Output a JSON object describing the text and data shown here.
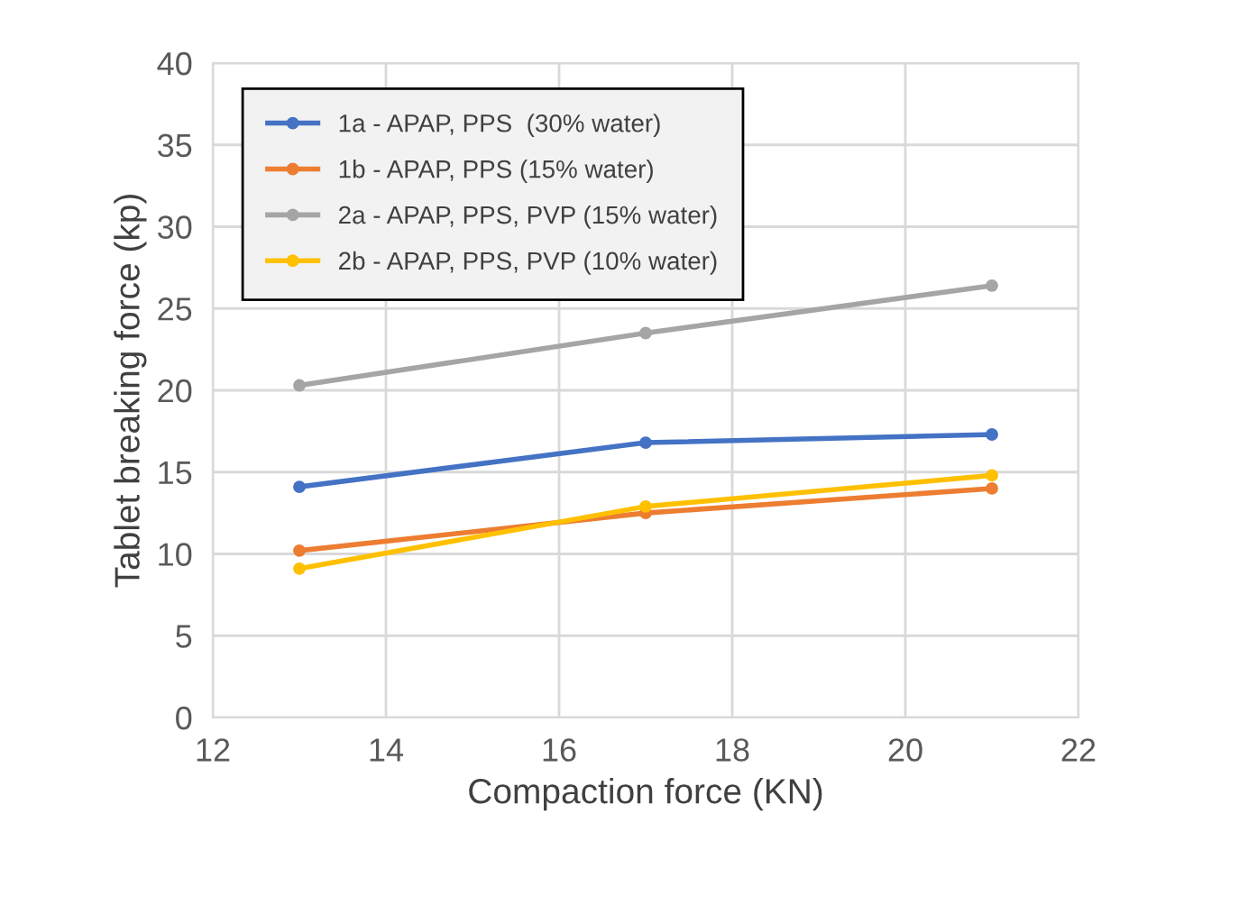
{
  "chart_data": {
    "type": "line",
    "xlabel": "Compaction force (KN)",
    "ylabel": "Tablet breaking force (kp)",
    "x": [
      13,
      17,
      21
    ],
    "series": [
      {
        "name": "1a - APAP, PPS  (30% water)",
        "color": "#4472c4",
        "values": [
          14.1,
          16.8,
          17.3
        ]
      },
      {
        "name": "1b - APAP, PPS (15% water)",
        "color": "#ed7d31",
        "values": [
          10.2,
          12.5,
          14.0
        ]
      },
      {
        "name": "2a - APAP, PPS, PVP (15% water)",
        "color": "#a5a5a5",
        "values": [
          20.3,
          23.5,
          26.4
        ]
      },
      {
        "name": "2b - APAP, PPS, PVP (10% water)",
        "color": "#ffc000",
        "values": [
          9.1,
          12.9,
          14.8
        ]
      }
    ],
    "xlim": [
      12,
      22
    ],
    "xticks": [
      12,
      14,
      16,
      18,
      20,
      22
    ],
    "ylim": [
      0,
      40
    ],
    "yticks": [
      0,
      5,
      10,
      15,
      20,
      25,
      30,
      35,
      40
    ],
    "grid": true,
    "legend": "top left",
    "marker": "circle",
    "line_style": "solid"
  }
}
